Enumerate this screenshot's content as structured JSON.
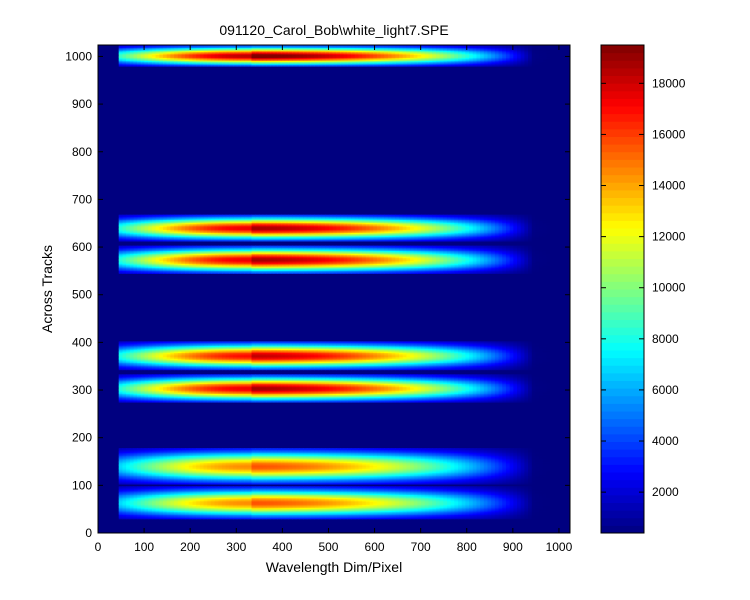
{
  "chart_data": {
    "type": "heatmap",
    "title": "091120_Carol_Bob\\white_light7.SPE",
    "xlabel": "Wavelength Dim/Pixel",
    "ylabel": "Across Tracks",
    "xlim": [
      0,
      1024
    ],
    "ylim": [
      0,
      1024
    ],
    "x_ticks": [
      0,
      100,
      200,
      300,
      400,
      500,
      600,
      700,
      800,
      900,
      1000
    ],
    "y_ticks": [
      0,
      100,
      200,
      300,
      400,
      500,
      600,
      700,
      800,
      900,
      1000
    ],
    "colorbar": {
      "colormap": "jet",
      "range": [
        400,
        19500
      ],
      "ticks": [
        2000,
        4000,
        6000,
        8000,
        10000,
        12000,
        14000,
        16000,
        18000
      ]
    },
    "background_value": 400,
    "x_start": 45,
    "x_end": 990,
    "peak_x": 330,
    "tracks": [
      {
        "y_lo": 30,
        "y_hi": 98,
        "peak": 14500
      },
      {
        "y_lo": 103,
        "y_hi": 178,
        "peak": 14500
      },
      {
        "y_lo": 275,
        "y_hi": 333,
        "peak": 17500
      },
      {
        "y_lo": 343,
        "y_hi": 402,
        "peak": 17000
      },
      {
        "y_lo": 545,
        "y_hi": 603,
        "peak": 17500
      },
      {
        "y_lo": 613,
        "y_hi": 668,
        "peak": 17500
      },
      {
        "y_lo": 980,
        "y_hi": 1024,
        "peak": 18500
      }
    ]
  }
}
